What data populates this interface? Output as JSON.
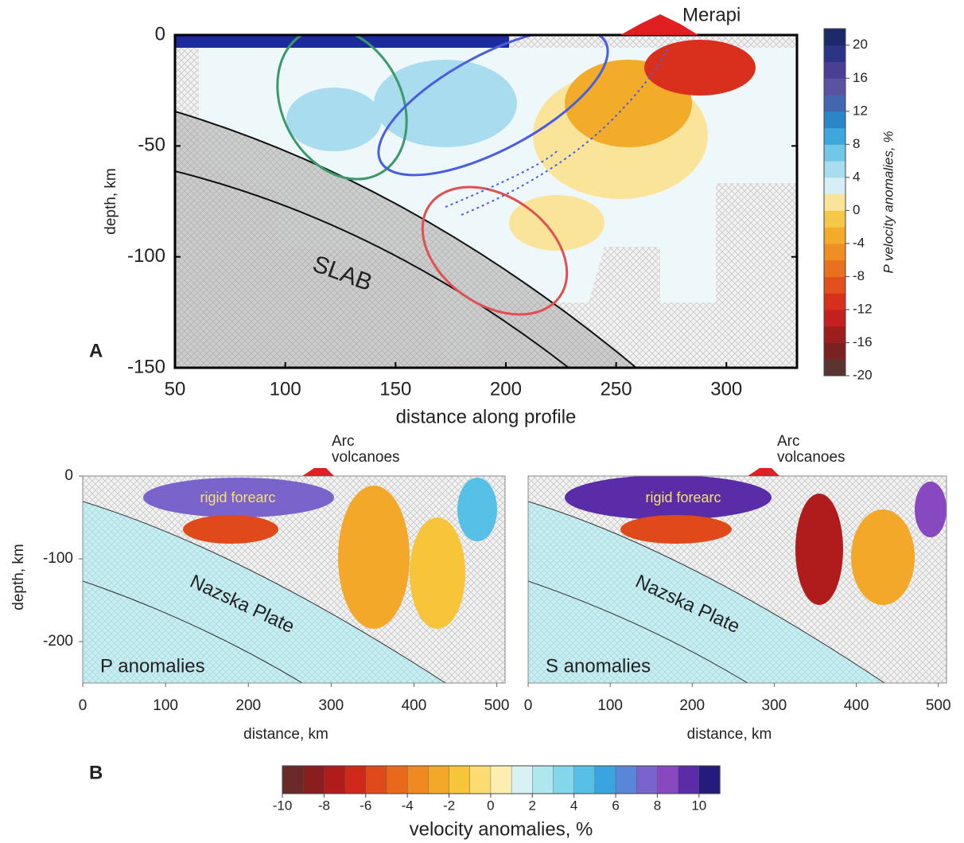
{
  "panel_a": {
    "label": "A",
    "volcano": "Merapi",
    "slab_label": "SLAB",
    "x_axis": {
      "title": "distance along profile",
      "range": [
        50,
        332
      ],
      "ticks": [
        50,
        100,
        150,
        200,
        250,
        300
      ]
    },
    "y_axis": {
      "title": "depth, km",
      "range": [
        -150,
        0
      ],
      "ticks": [
        0,
        -50,
        -100,
        -150
      ]
    },
    "colorbar": {
      "title": "P velocity anomalies, %",
      "range": [
        -20,
        22
      ],
      "ticks": [
        20,
        16,
        12,
        8,
        4,
        0,
        -4,
        -8,
        -12,
        -16,
        -20
      ],
      "colors": [
        "#5a3530",
        "#7a2222",
        "#9e1e1e",
        "#c42020",
        "#d8301c",
        "#e2501c",
        "#e8701e",
        "#ef8e22",
        "#f3ac2a",
        "#f6c84a",
        "#f9e49a",
        "#d6eef6",
        "#a8dcee",
        "#72c6e6",
        "#3ea8dc",
        "#2b86c8",
        "#4466b0",
        "#5a54a0",
        "#4a3f94",
        "#2c3486",
        "#1c2a6c"
      ]
    }
  },
  "panel_b": {
    "label": "B",
    "x_axis": {
      "title": "distance, km",
      "range": [
        0,
        510
      ],
      "ticks": [
        0,
        100,
        200,
        300,
        400,
        500
      ]
    },
    "y_axis": {
      "title": "depth, km",
      "range": [
        -250,
        0
      ],
      "ticks": [
        0,
        -100,
        -200
      ]
    },
    "plots": [
      {
        "title": "P anomalies",
        "volcano_lines": [
          "Arc",
          "volcanoes"
        ],
        "forearc": "rigid forearc",
        "plate": "Nazska Plate"
      },
      {
        "title": "S anomalies",
        "volcano_lines": [
          "Arc",
          "volcanoes"
        ],
        "forearc": "rigid forearc",
        "plate": "Nazska Plate"
      }
    ],
    "colorbar": {
      "title": "velocity anomalies, %",
      "range": [
        -10,
        11
      ],
      "ticks": [
        -10,
        -8,
        -6,
        -4,
        -2,
        0,
        2,
        4,
        6,
        8,
        10
      ],
      "colors": [
        "#6a2a2a",
        "#8a1e1e",
        "#b01c1c",
        "#d0281a",
        "#e04a1a",
        "#e8681c",
        "#ef8a22",
        "#f4a82a",
        "#f7c43a",
        "#fadc70",
        "#fbeeb0",
        "#d8f2f4",
        "#b0e6ee",
        "#84d6ea",
        "#56c0e6",
        "#3aa4e0",
        "#5a86d8",
        "#7a64cc",
        "#8848c0",
        "#5a2ca8",
        "#241c7c"
      ]
    }
  }
}
